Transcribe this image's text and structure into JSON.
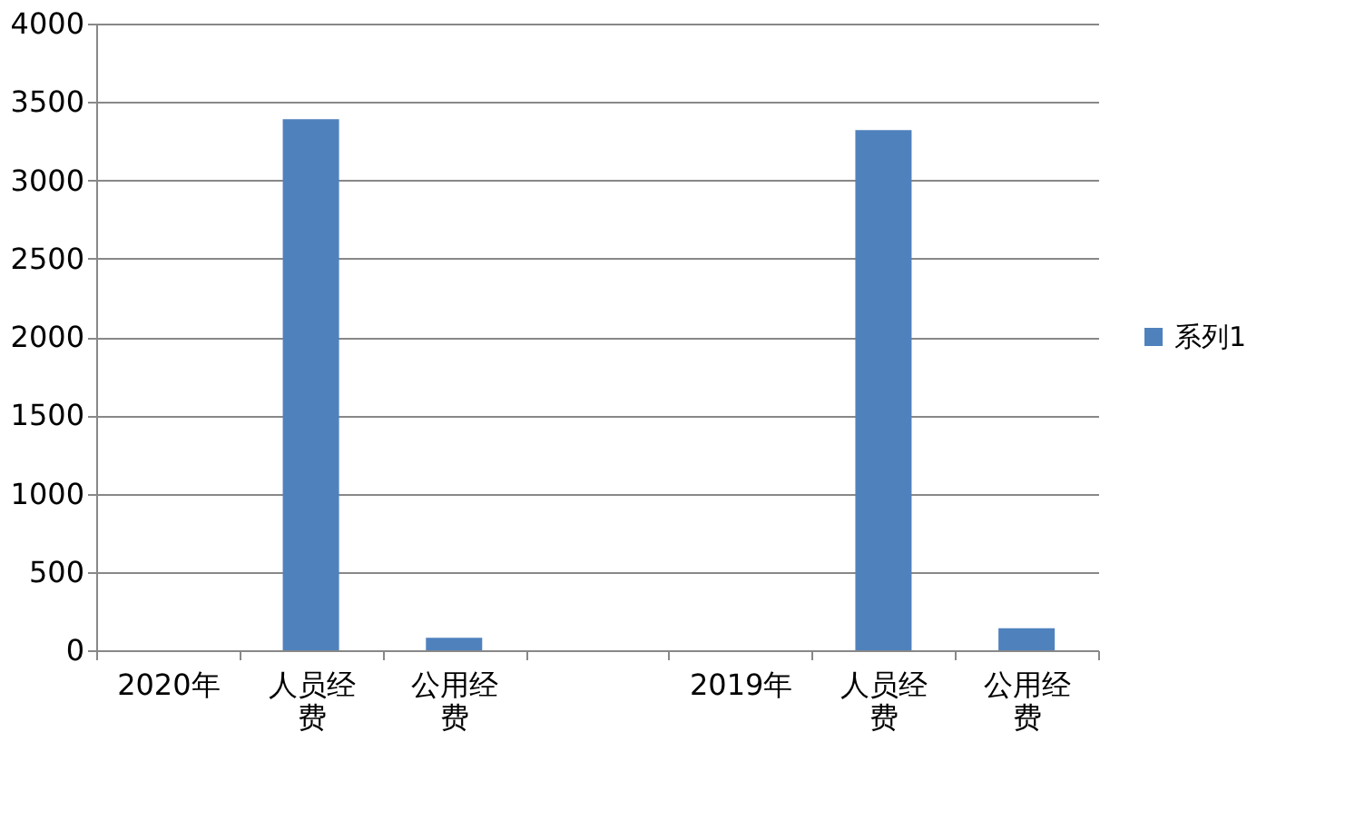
{
  "chart_data": {
    "type": "bar",
    "categories": [
      "2020年",
      "人员经费",
      "公用经费",
      null,
      "2019年",
      "人员经费",
      "公用经费"
    ],
    "series": [
      {
        "name": "系列1",
        "color": "#4f81bd",
        "values": [
          null,
          3390,
          80,
          null,
          null,
          3320,
          140
        ]
      }
    ],
    "ylim": [
      0,
      4000
    ],
    "yticks": [
      0,
      500,
      1000,
      1500,
      2000,
      2500,
      3000,
      3500,
      4000
    ],
    "grid": "y",
    "legend": "right"
  }
}
